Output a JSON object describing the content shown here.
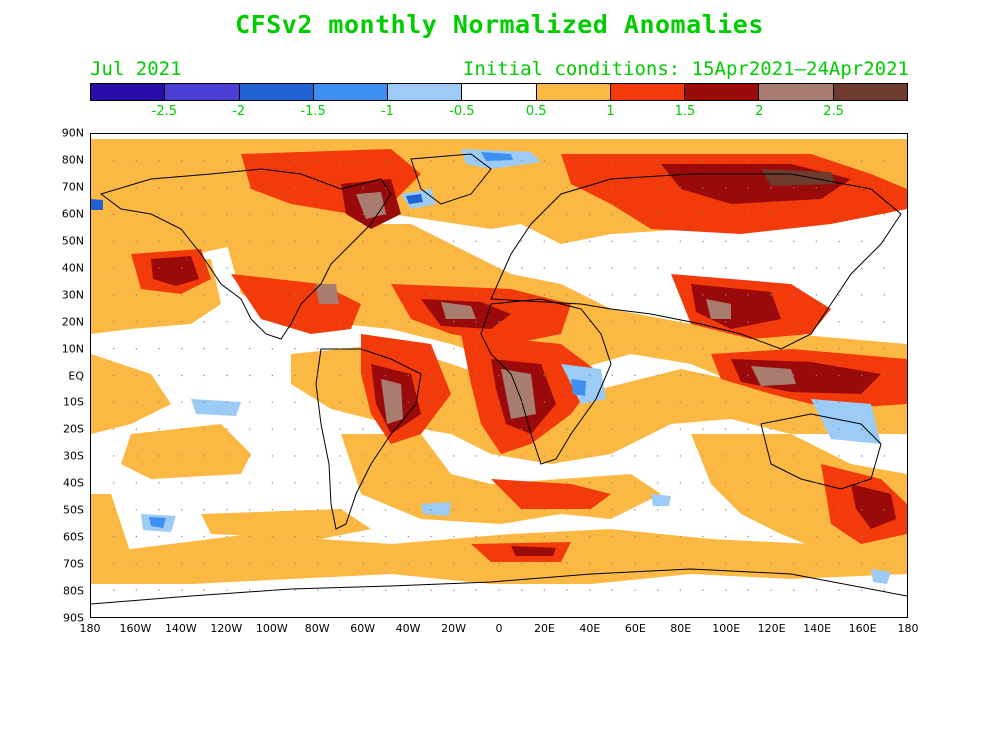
{
  "title": "CFSv2 monthly Normalized Anomalies",
  "month": "Jul 2021",
  "initial_conditions": "Initial conditions: 15Apr2021–24Apr2021",
  "colorbar": {
    "colors": [
      "#2a0ca8",
      "#4a3ed6",
      "#1f62d6",
      "#3d8ff2",
      "#9ccbf6",
      "#ffffff",
      "#fbb944",
      "#f23a0a",
      "#9a0a0a",
      "#a97c70",
      "#6e3b2e"
    ],
    "labels": [
      "-2.5",
      "-2",
      "-1.5",
      "-1",
      "-0.5",
      "0.5",
      "1",
      "1.5",
      "2",
      "2.5"
    ]
  },
  "latitude_labels": [
    "90N",
    "80N",
    "70N",
    "60N",
    "50N",
    "40N",
    "30N",
    "20N",
    "10N",
    "EQ",
    "10S",
    "20S",
    "30S",
    "40S",
    "50S",
    "60S",
    "70S",
    "80S",
    "90S"
  ],
  "longitude_labels": [
    "180",
    "160W",
    "140W",
    "120W",
    "100W",
    "80W",
    "60W",
    "40W",
    "20W",
    "0",
    "20E",
    "40E",
    "60E",
    "80E",
    "100E",
    "120E",
    "140E",
    "160E",
    "180"
  ]
}
